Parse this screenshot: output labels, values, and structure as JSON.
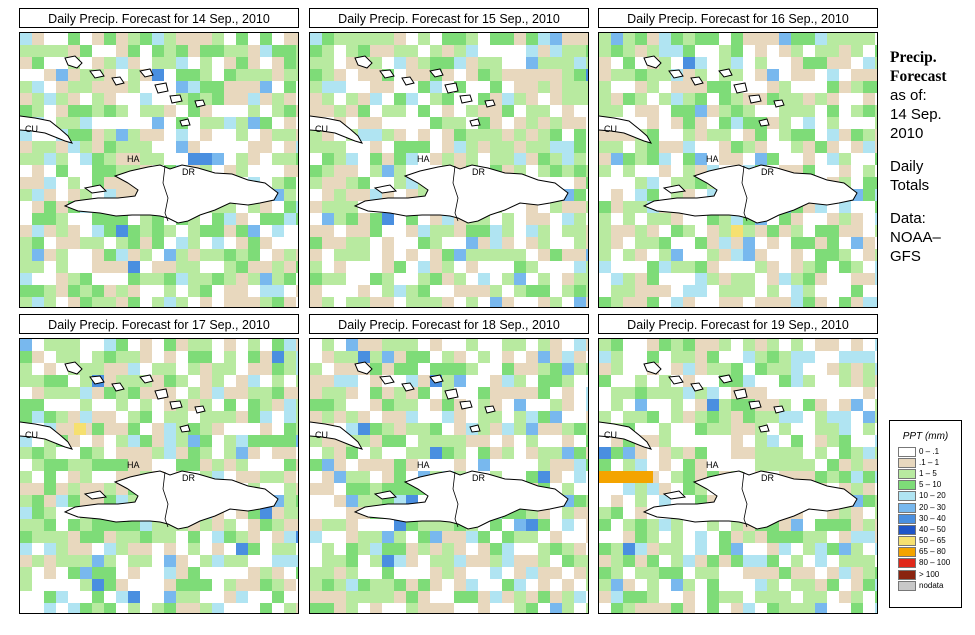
{
  "panels": [
    {
      "title": "Daily Precip. Forecast for  14 Sep., 2010",
      "seed": 11,
      "pattern": "p1"
    },
    {
      "title": "Daily Precip. Forecast for  15 Sep., 2010",
      "seed": 23,
      "pattern": "p2"
    },
    {
      "title": "Daily Precip. Forecast for  16 Sep., 2010",
      "seed": 37,
      "pattern": "p3"
    },
    {
      "title": "Daily Precip. Forecast for  17 Sep., 2010",
      "seed": 41,
      "pattern": "p4"
    },
    {
      "title": "Daily Precip. Forecast for  18 Sep., 2010",
      "seed": 53,
      "pattern": "p5"
    },
    {
      "title": "Daily Precip. Forecast for  19 Sep., 2010",
      "seed": 67,
      "pattern": "p6"
    }
  ],
  "map_labels": {
    "cu": "CU",
    "ha": "HA",
    "dr": "DR"
  },
  "sidebar": {
    "title_line1": "Precip.",
    "title_line2": "Forecast",
    "asof": "as of:",
    "date_line1": "14 Sep.",
    "date_line2": "2010",
    "daily1": "Daily",
    "daily2": "Totals",
    "data1": "Data:",
    "data2": "NOAA–",
    "data3": "GFS"
  },
  "legend": {
    "title": "PPT (mm)",
    "items": [
      {
        "label": "0 – .1",
        "color": "#ffffff"
      },
      {
        "label": ".1 – 1",
        "color": "#e8d8be"
      },
      {
        "label": "1 – 5",
        "color": "#b8eaa0"
      },
      {
        "label": "5 – 10",
        "color": "#7edc78"
      },
      {
        "label": "10 – 20",
        "color": "#b0e4f2"
      },
      {
        "label": "20 – 30",
        "color": "#78b8ee"
      },
      {
        "label": "30 – 40",
        "color": "#4a8fe0"
      },
      {
        "label": "40 – 50",
        "color": "#1f54c8"
      },
      {
        "label": "50 – 65",
        "color": "#f6e070"
      },
      {
        "label": "65 – 80",
        "color": "#f4a400"
      },
      {
        "label": "80 – 100",
        "color": "#e0281a"
      },
      {
        "label": "> 100",
        "color": "#8a2410"
      },
      {
        "label": "nodata",
        "color": "#c8c8c8"
      }
    ]
  }
}
